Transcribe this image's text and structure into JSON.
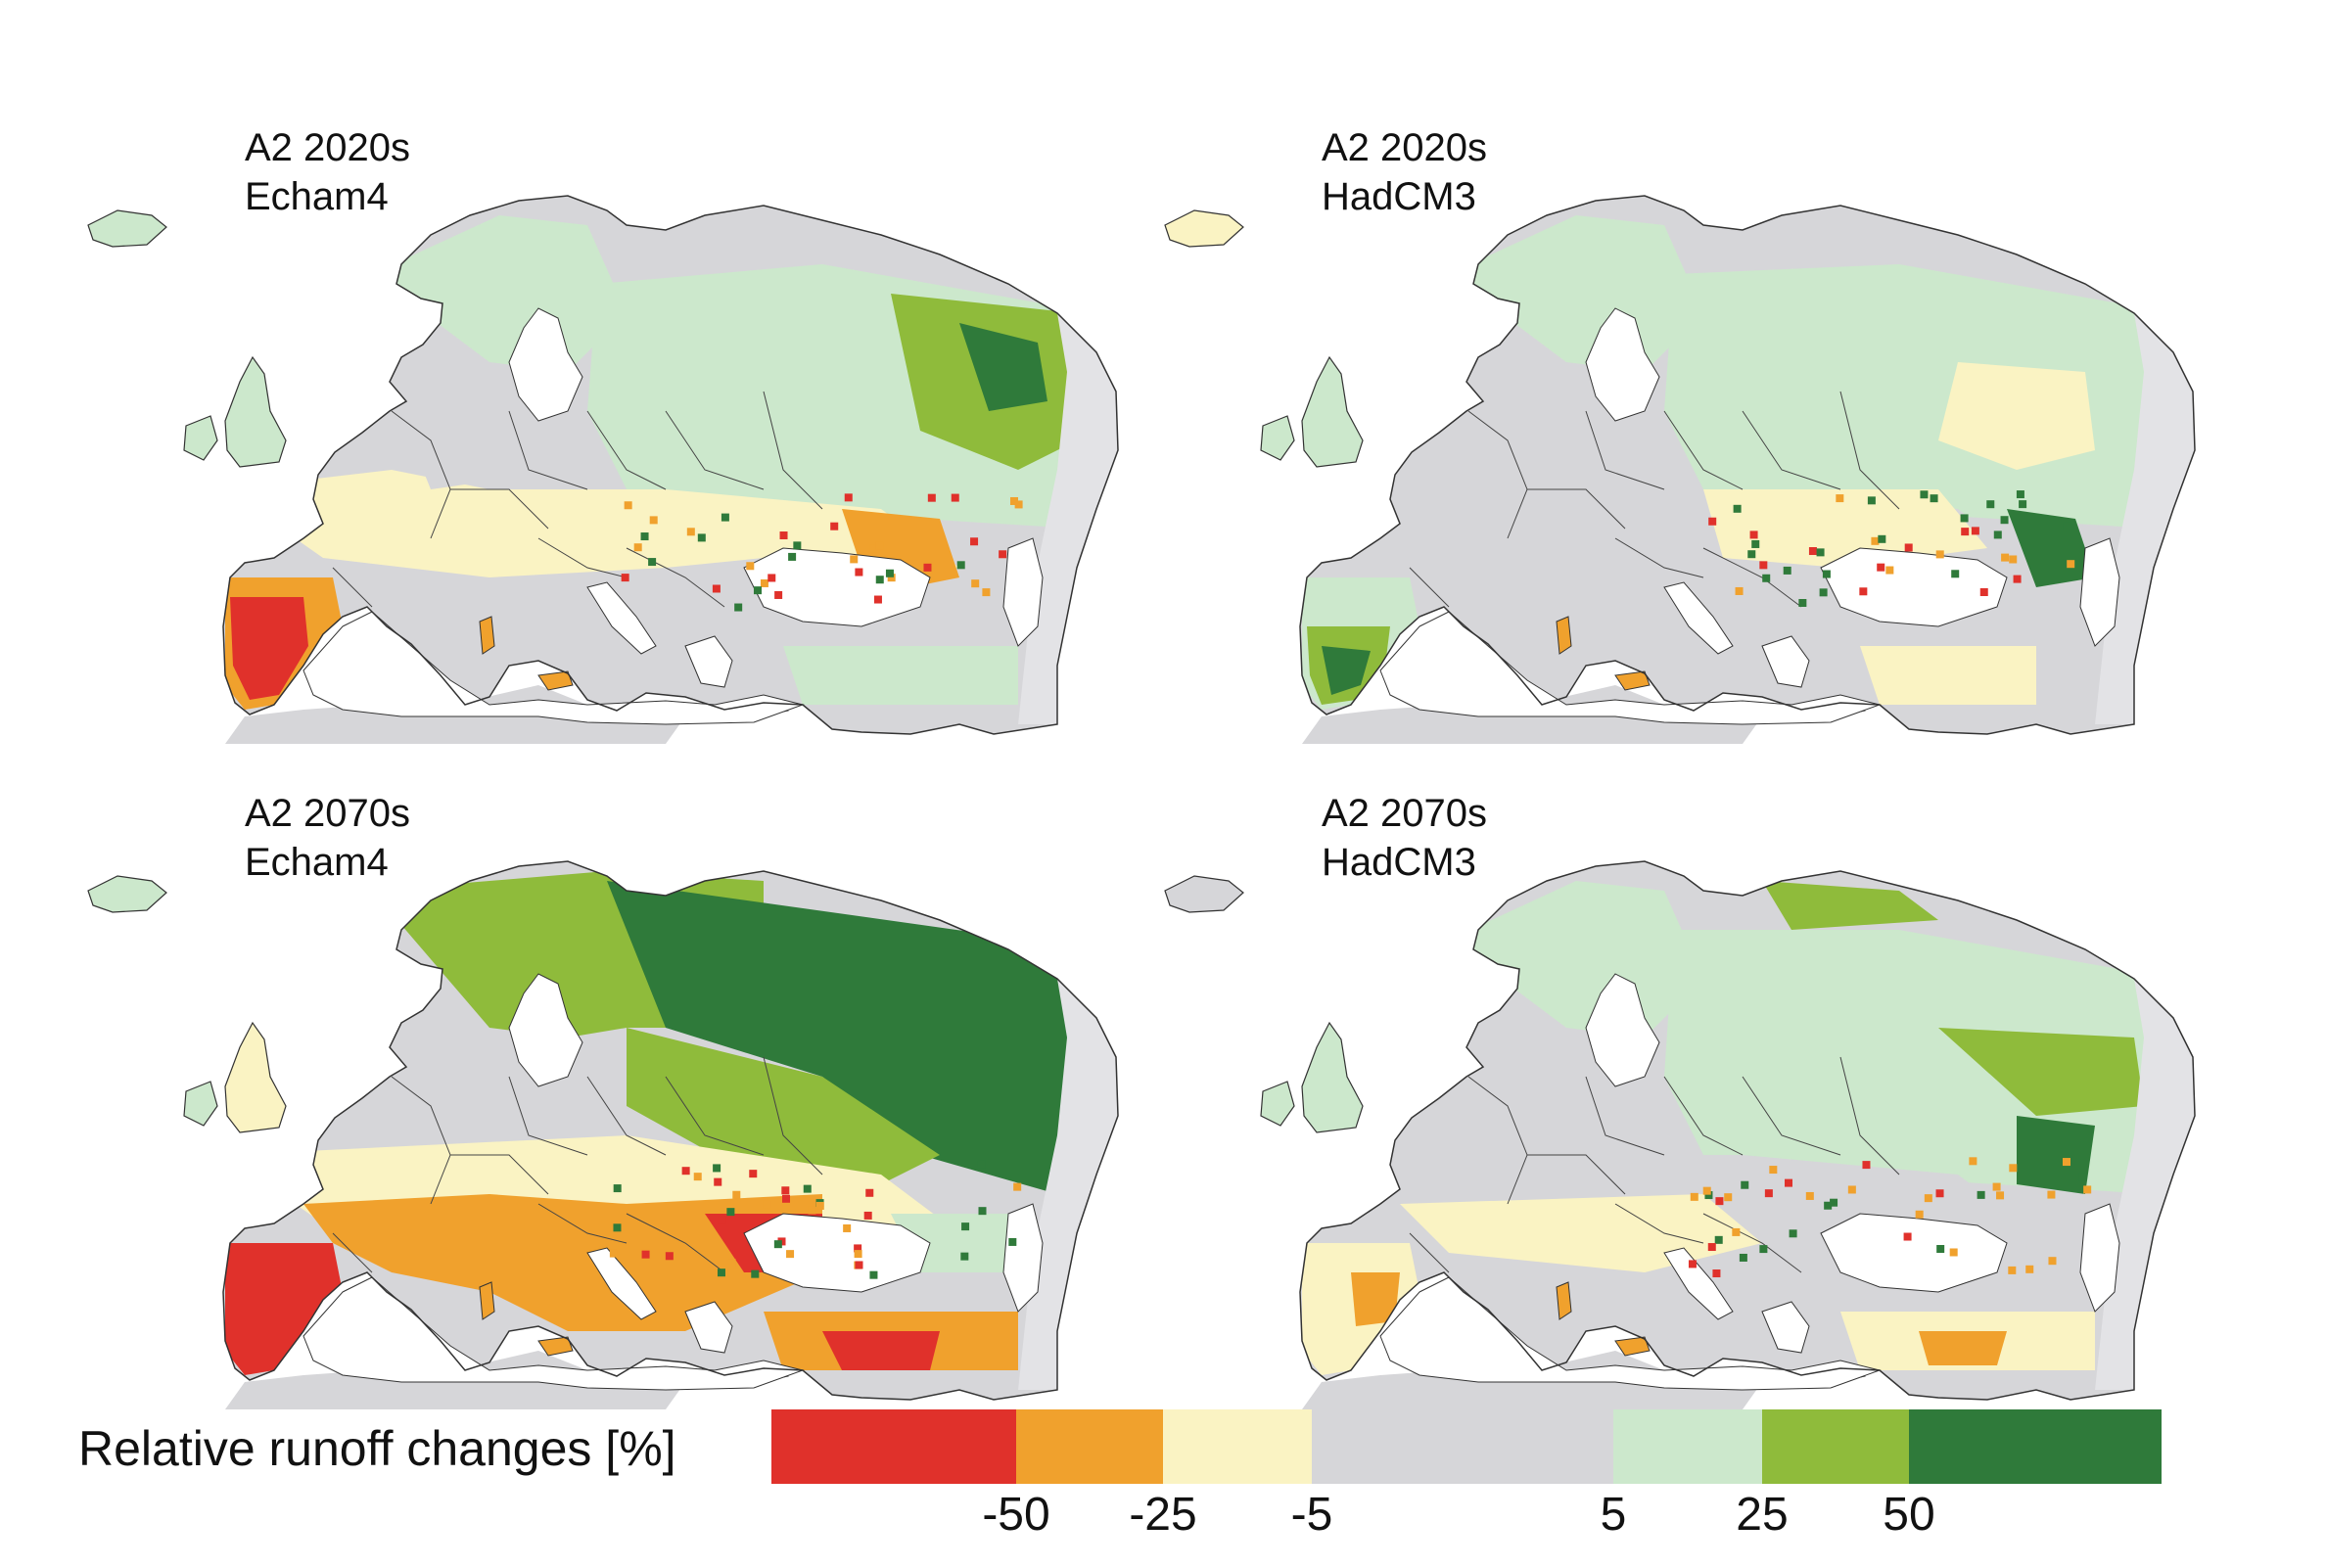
{
  "colors": {
    "c_lt_m50": "#e0312b",
    "c_m50_m25": "#f0a12d",
    "c_m25_m5": "#faf3c3",
    "c_m5_5": "#d6d6d9",
    "c_5_25": "#cce8cc",
    "c_25_50": "#8fbb3b",
    "c_gt_50": "#2f7a3a",
    "sea": "#ffffff",
    "border": "#333333"
  },
  "panels": [
    {
      "scenario": "A2 2020s",
      "model": "Echam4"
    },
    {
      "scenario": "A2 2020s",
      "model": "HadCM3"
    },
    {
      "scenario": "A2 2070s",
      "model": "Echam4"
    },
    {
      "scenario": "A2 2070s",
      "model": "HadCM3"
    }
  ],
  "legend": {
    "title": "Relative runoff changes [%]",
    "ticks": [
      "-50",
      "-25",
      "-5",
      "5",
      "25",
      "50"
    ]
  }
}
